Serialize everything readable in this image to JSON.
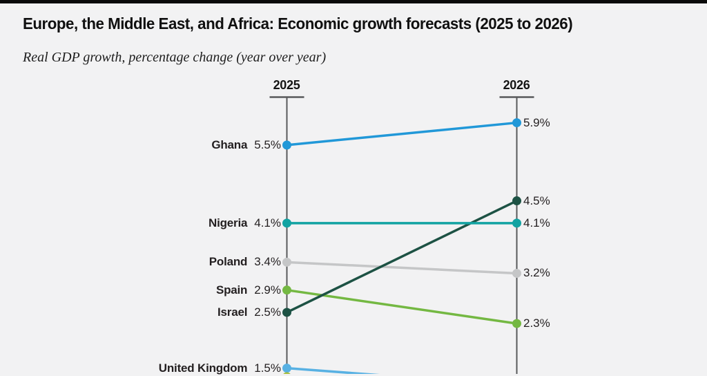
{
  "page": {
    "background": "#f2f2f3",
    "top_rule_color": "#0a0a0a"
  },
  "header": {
    "title": "Europe, the Middle East, and Africa: Economic growth forecasts (2025 to 2026)",
    "subtitle": "Real GDP growth, percentage change (year over year)"
  },
  "chart_data": {
    "type": "line",
    "subtype": "slopegraph",
    "columns": [
      "2025",
      "2026"
    ],
    "value_suffix": "%",
    "axis_color": "#58595b",
    "label_color": "#231f20",
    "series": [
      {
        "name": "Ghana",
        "color": "#2198d8",
        "values": [
          5.5,
          5.9
        ]
      },
      {
        "name": "Nigeria",
        "color": "#12a3a2",
        "values": [
          4.1,
          4.1
        ]
      },
      {
        "name": "Poland",
        "color": "#c5c6c7",
        "values": [
          3.4,
          3.2
        ]
      },
      {
        "name": "Spain",
        "color": "#74b842",
        "values": [
          2.9,
          2.3
        ]
      },
      {
        "name": "Israel",
        "color": "#1d5244",
        "values": [
          2.5,
          4.5
        ]
      },
      {
        "name": "United Kingdom",
        "color": "#58b1e3",
        "values": [
          1.5,
          null
        ]
      }
    ],
    "clipped_marker": {
      "color": "#a6bd3b",
      "note": "additional data point partially visible at bottom edge of 2025 axis"
    },
    "draw_order": [
      "Poland",
      "Spain",
      "Israel",
      "Ghana",
      "Nigeria",
      "United Kingdom"
    ],
    "ylim_visible": [
      1.4,
      6.2
    ],
    "legend": "none",
    "grid": "off"
  }
}
